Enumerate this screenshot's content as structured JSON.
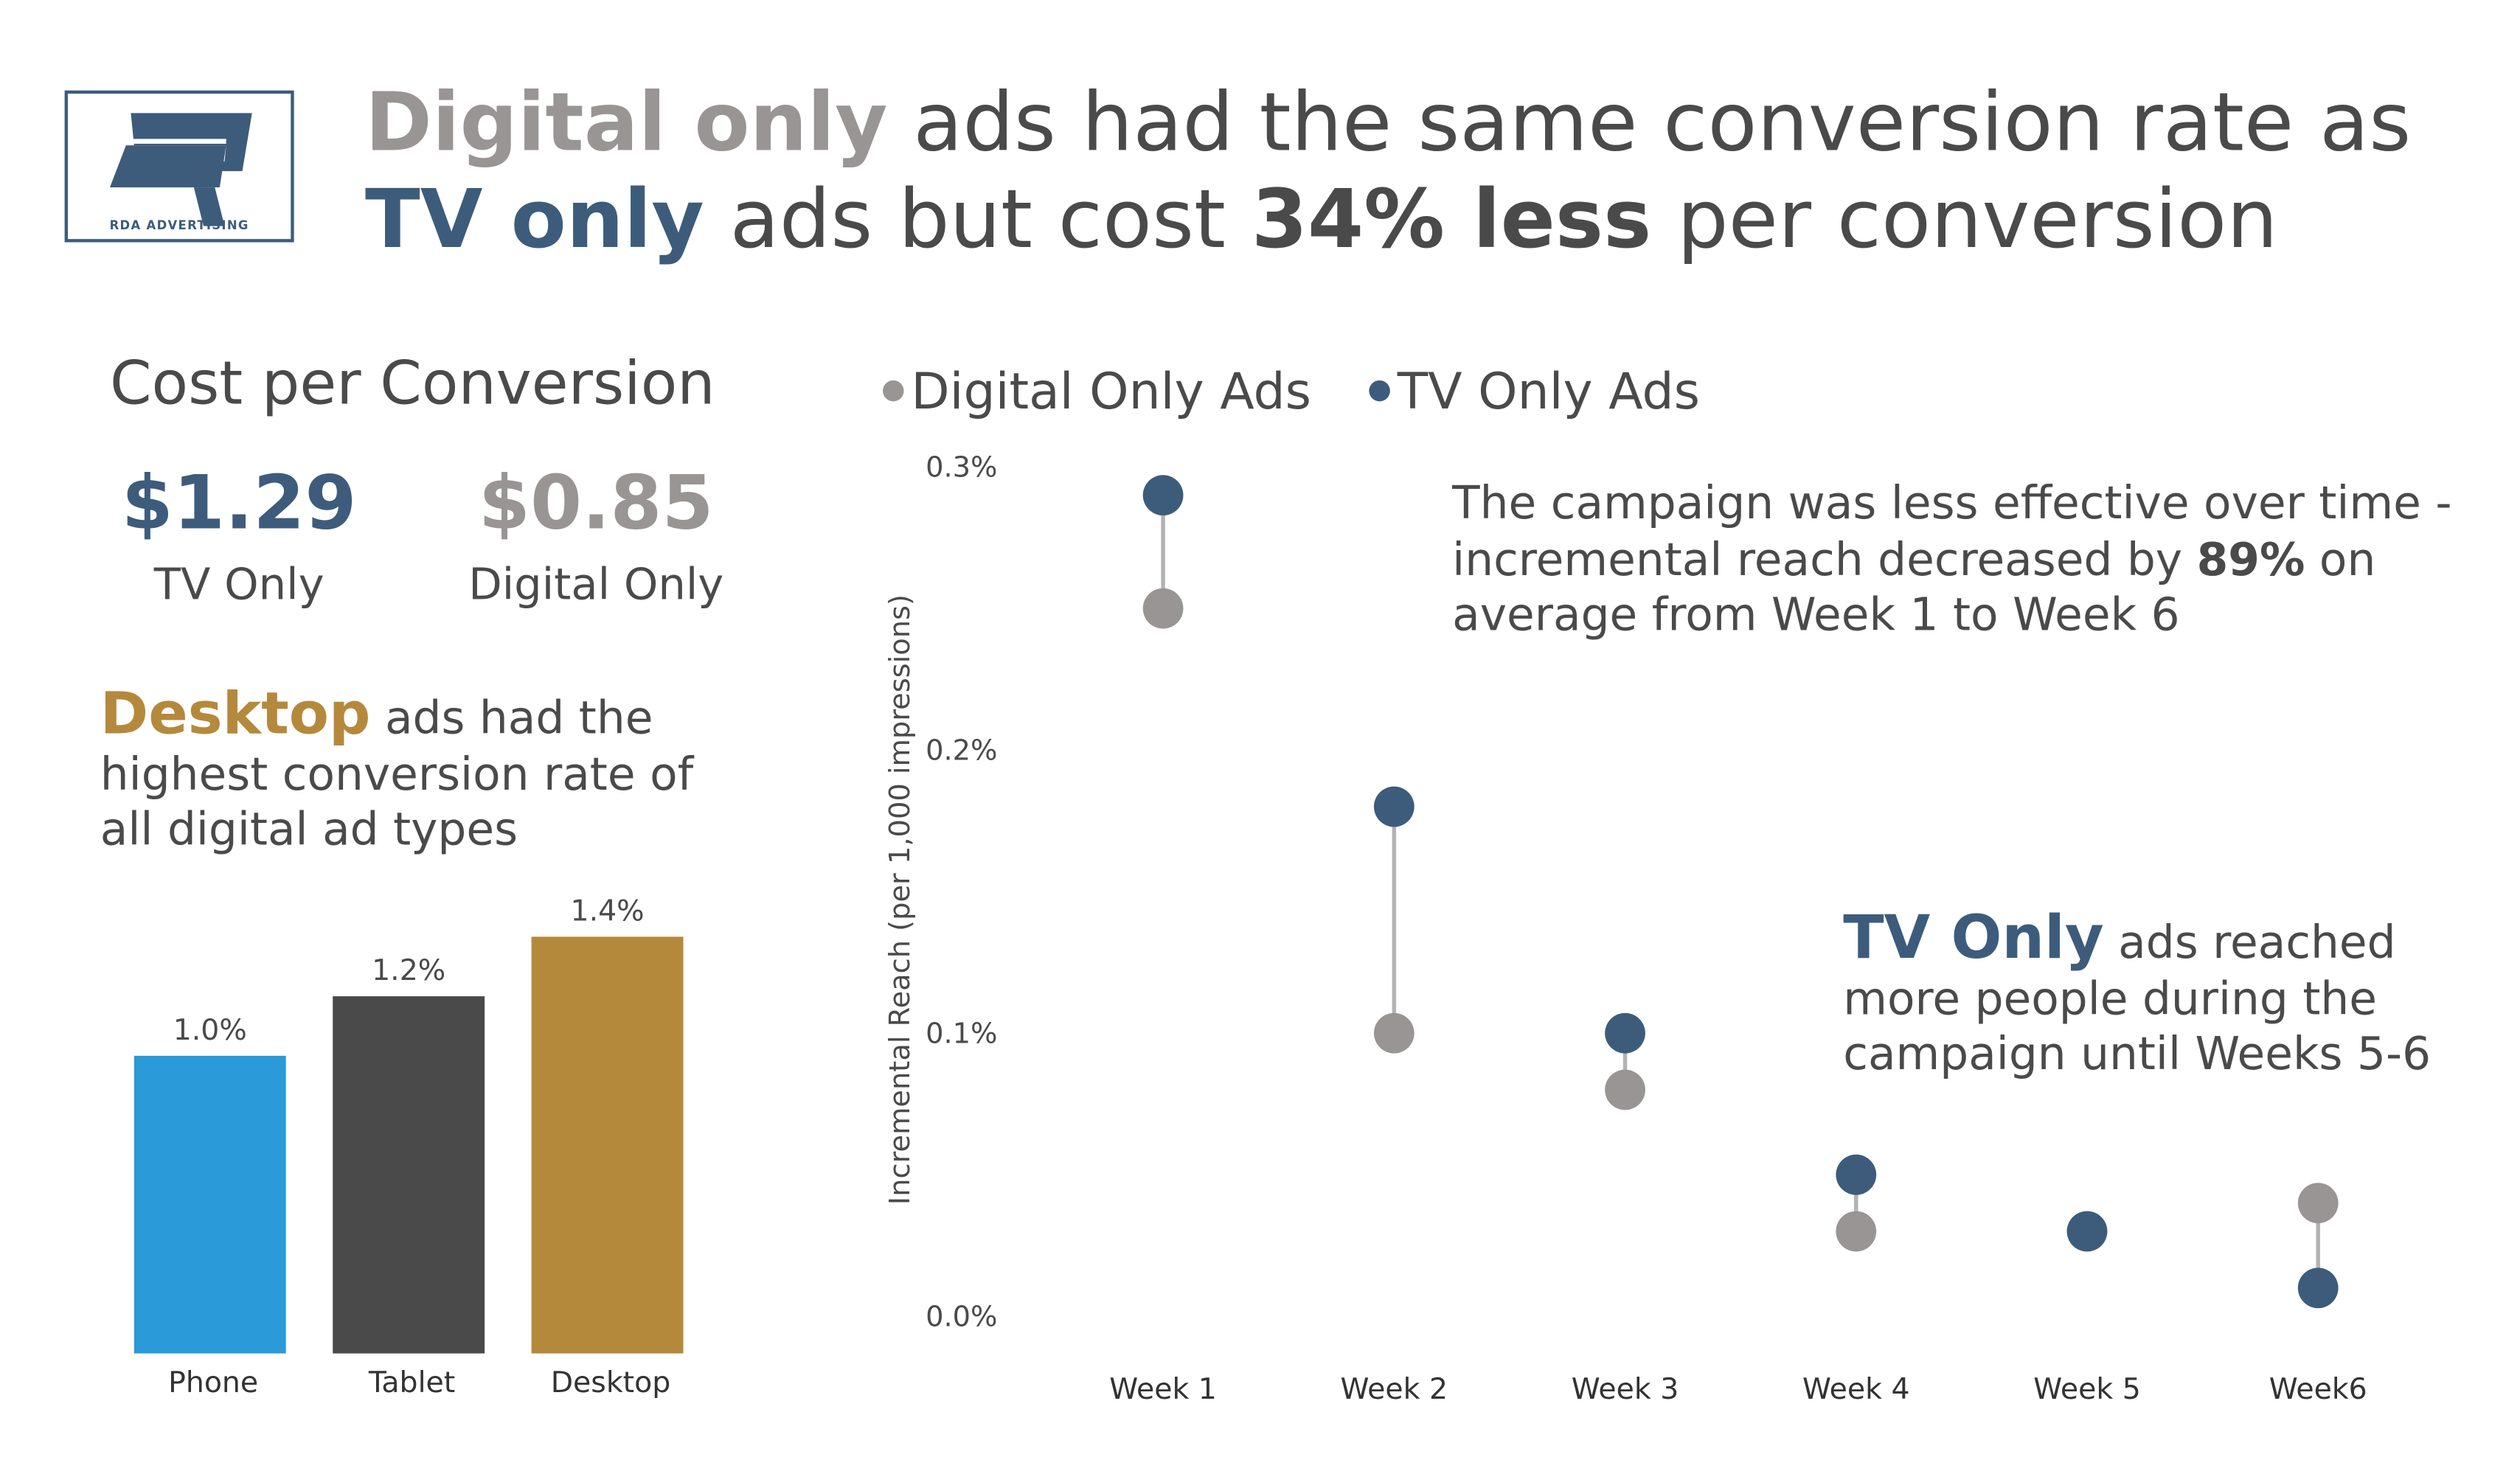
{
  "logo": {
    "text": "RDA ADVERTISING"
  },
  "headline": {
    "part1": "Digital only",
    "part2": " ads had the same conversion rate as",
    "part3": "TV only",
    "part4": " ads but cost ",
    "part5": "34% less",
    "part6": " per conversion"
  },
  "cost": {
    "title": "Cost per Conversion",
    "tv_value": "$1.29",
    "tv_label": "TV Only",
    "digital_value": "$0.85",
    "digital_label": "Digital Only"
  },
  "desktop_note": {
    "bold": "Desktop",
    "line1": " ads had the",
    "line2": "highest conversion rate of",
    "line3": "all digital ad types"
  },
  "annotation1": {
    "line1": "The campaign was less effective over time -",
    "line2a": "incremental reach decreased by ",
    "line2b": "89%",
    "line2c": " on",
    "line3": "average from Week 1 to Week 6"
  },
  "annotation2": {
    "bold": "TV Only",
    "line1": " ads reached",
    "line2": "more people during the",
    "line3": "campaign until Weeks 5-6"
  },
  "colors": {
    "tv": "#3d5c7c",
    "digital": "#999595",
    "phone": "#2a9ad8",
    "tablet": "#4a4a4a",
    "desktop": "#b5893c",
    "connector": "#b3b3b3"
  },
  "chart_data": [
    {
      "type": "bar",
      "categories": [
        "Phone",
        "Tablet",
        "Desktop"
      ],
      "values": [
        1.0,
        1.2,
        1.4
      ],
      "data_labels": [
        "1.0%",
        "1.2%",
        "1.4%"
      ],
      "colors": [
        "#2a9ad8",
        "#4a4a4a",
        "#b5893c"
      ],
      "ylim": [
        0,
        1.4
      ],
      "grid": false
    },
    {
      "type": "scatter",
      "subtype": "dumbbell",
      "categories": [
        "Week 1",
        "Week 2",
        "Week 3",
        "Week 4",
        "Week 5",
        "Week6"
      ],
      "series": [
        {
          "name": "Digital Only Ads",
          "color": "#999595",
          "values": [
            0.25,
            0.1,
            0.08,
            0.03,
            0.03,
            0.04
          ]
        },
        {
          "name": "TV Only Ads",
          "color": "#3d5c7c",
          "values": [
            0.29,
            0.18,
            0.1,
            0.05,
            0.03,
            0.01
          ]
        }
      ],
      "ylabel": "Incremental Reach (per 1,000 impressions)",
      "yticks": [
        "0.0%",
        "0.1%",
        "0.2%",
        "0.3%"
      ],
      "ytick_values": [
        0,
        0.1,
        0.2,
        0.3
      ],
      "ylim": [
        0,
        0.3
      ],
      "legend": "top",
      "grid": false
    }
  ]
}
